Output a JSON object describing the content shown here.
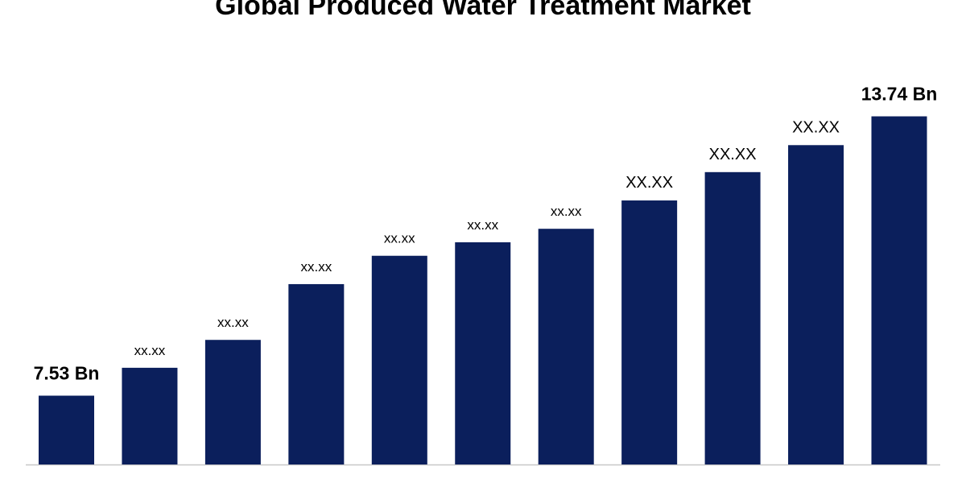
{
  "chart_data": {
    "type": "bar",
    "title": "Global Produced Water Treatment Market",
    "values": [
      7.53,
      8.15,
      8.77,
      10.01,
      10.64,
      10.94,
      11.24,
      11.87,
      12.5,
      13.1,
      13.74
    ],
    "value_labels": [
      "7.53 Bn",
      "xx.xx",
      "xx.xx",
      "xx.xx",
      "xx.xx",
      "xx.xx",
      "xx.xx",
      "XX.XX",
      "XX.XX",
      "XX.XX",
      "13.74 Bn"
    ],
    "color": "#0b1f5c",
    "ylim": [
      6,
      14
    ]
  }
}
